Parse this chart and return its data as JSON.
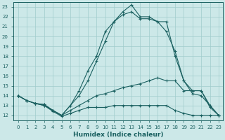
{
  "title": "",
  "xlabel": "Humidex (Indice chaleur)",
  "ylabel": "",
  "xlim": [
    -0.5,
    23.5
  ],
  "ylim": [
    11.5,
    23.5
  ],
  "yticks": [
    12,
    13,
    14,
    15,
    16,
    17,
    18,
    19,
    20,
    21,
    22,
    23
  ],
  "xticks": [
    0,
    1,
    2,
    3,
    4,
    5,
    6,
    7,
    8,
    9,
    10,
    11,
    12,
    13,
    14,
    15,
    16,
    17,
    18,
    19,
    20,
    21,
    22,
    23
  ],
  "bg_color": "#cce8e8",
  "grid_color": "#a0cccc",
  "line_color": "#1a6060",
  "lines": [
    {
      "x": [
        0,
        1,
        2,
        3,
        4,
        5,
        6,
        7,
        8,
        9,
        10,
        11,
        12,
        13,
        14,
        15,
        16,
        17,
        18,
        19,
        20,
        21,
        22,
        23
      ],
      "y": [
        14.0,
        13.5,
        13.2,
        13.1,
        12.5,
        12.0,
        13.0,
        14.5,
        16.5,
        18.0,
        20.5,
        21.5,
        22.5,
        23.2,
        22.0,
        22.0,
        21.5,
        20.5,
        18.5,
        15.5,
        14.2,
        14.0,
        13.0,
        12.0
      ]
    },
    {
      "x": [
        0,
        1,
        2,
        3,
        4,
        5,
        6,
        7,
        8,
        9,
        10,
        11,
        12,
        13,
        14,
        15,
        16,
        17,
        18,
        19,
        20,
        21,
        22,
        23
      ],
      "y": [
        14.0,
        13.5,
        13.2,
        13.1,
        12.5,
        12.0,
        13.0,
        14.0,
        15.5,
        17.5,
        19.5,
        21.5,
        22.2,
        22.5,
        21.8,
        21.8,
        21.5,
        21.5,
        18.0,
        15.5,
        14.5,
        14.5,
        12.8,
        12.0
      ]
    },
    {
      "x": [
        0,
        1,
        2,
        3,
        4,
        5,
        6,
        7,
        8,
        9,
        10,
        11,
        12,
        13,
        14,
        15,
        16,
        17,
        18,
        19,
        20,
        21,
        22,
        23
      ],
      "y": [
        14.0,
        13.5,
        13.2,
        13.0,
        12.5,
        12.0,
        12.5,
        13.0,
        13.5,
        14.0,
        14.2,
        14.5,
        14.8,
        15.0,
        15.2,
        15.5,
        15.8,
        15.5,
        15.5,
        14.5,
        14.5,
        14.5,
        13.0,
        12.0
      ]
    },
    {
      "x": [
        0,
        1,
        2,
        3,
        4,
        5,
        6,
        7,
        8,
        9,
        10,
        11,
        12,
        13,
        14,
        15,
        16,
        17,
        18,
        19,
        20,
        21,
        22,
        23
      ],
      "y": [
        14.0,
        13.5,
        13.2,
        13.0,
        12.4,
        11.9,
        12.2,
        12.5,
        12.8,
        12.8,
        12.8,
        13.0,
        13.0,
        13.0,
        13.0,
        13.0,
        13.0,
        13.0,
        12.5,
        12.2,
        12.0,
        12.0,
        12.0,
        12.0
      ]
    }
  ]
}
